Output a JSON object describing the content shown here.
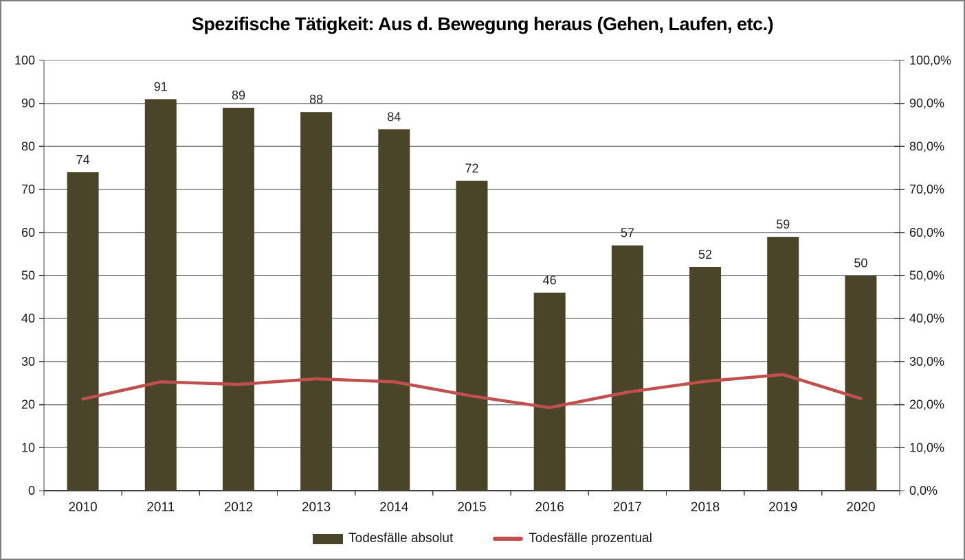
{
  "window": {
    "background_color": "#ffffff",
    "border_color": "#808080"
  },
  "chart_data": {
    "type": "bar+line",
    "title": "Spezifische Tätigkeit: Aus d. Bewegung heraus (Gehen, Laufen, etc.)",
    "categories": [
      "2010",
      "2011",
      "2012",
      "2013",
      "2014",
      "2015",
      "2016",
      "2017",
      "2018",
      "2019",
      "2020"
    ],
    "series": [
      {
        "name": "Todesfälle absolut",
        "type": "bar",
        "axis": "left",
        "color": "#4a4429",
        "values": [
          74,
          91,
          89,
          88,
          84,
          72,
          46,
          57,
          52,
          59,
          50
        ],
        "data_labels": [
          74,
          91,
          89,
          88,
          84,
          72,
          46,
          57,
          52,
          59,
          50
        ]
      },
      {
        "name": "Todesfälle prozentual",
        "type": "line",
        "axis": "right",
        "color": "#c0504d",
        "values_percent": [
          21.3,
          25.3,
          24.7,
          26.0,
          25.3,
          22.0,
          19.3,
          22.9,
          25.4,
          27.0,
          21.4
        ]
      }
    ],
    "left_axis": {
      "min": 0,
      "max": 100,
      "step": 10,
      "tick_labels": [
        "0",
        "10",
        "20",
        "30",
        "40",
        "50",
        "60",
        "70",
        "80",
        "90",
        "100"
      ]
    },
    "right_axis": {
      "min": 0,
      "max": 100,
      "step": 10,
      "tick_labels": [
        "0,0%",
        "10,0%",
        "20,0%",
        "30,0%",
        "40,0%",
        "50,0%",
        "60,0%",
        "70,0%",
        "80,0%",
        "90,0%",
        "100,0%"
      ]
    },
    "grid": true,
    "legend_position": "bottom",
    "colors": {
      "gridline": "#868686",
      "axis_line": "#404040",
      "tick_label": "#1a1a1a",
      "data_label": "#262626"
    }
  }
}
